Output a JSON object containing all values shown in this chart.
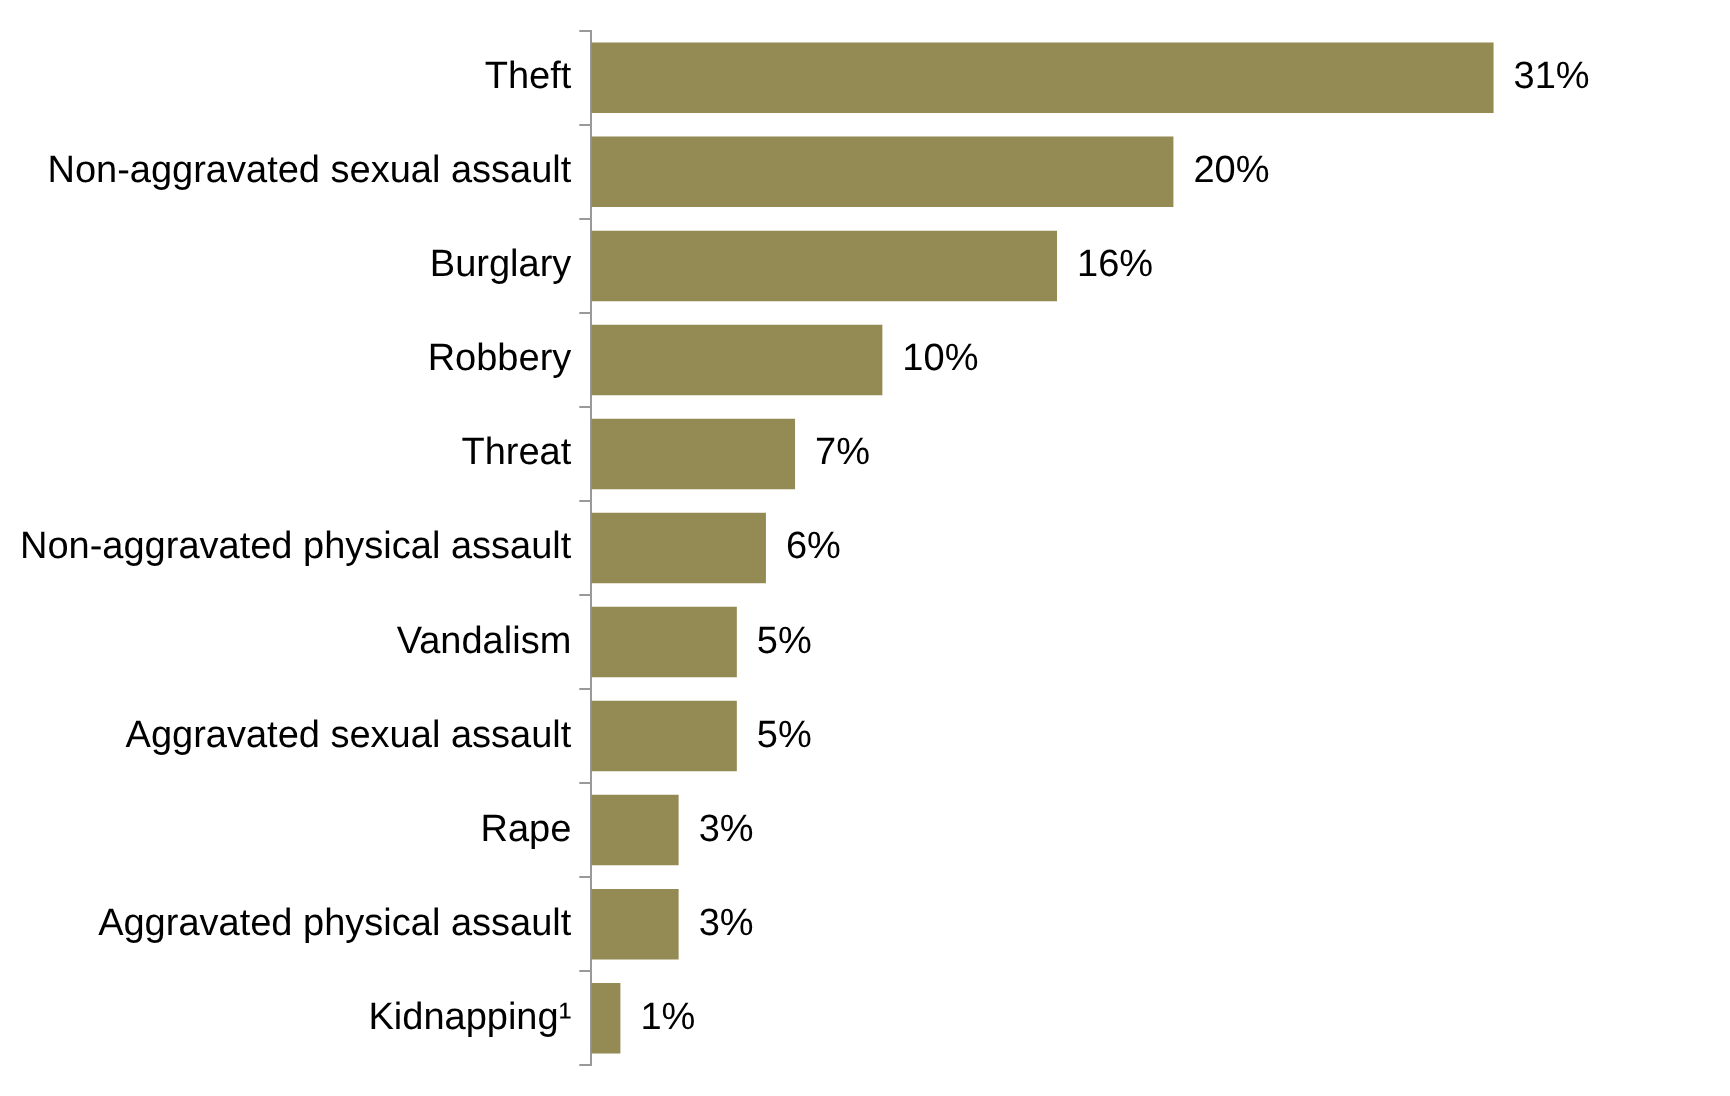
{
  "chart_data": {
    "type": "bar",
    "orientation": "horizontal",
    "categories": [
      "Theft",
      "Non-aggravated sexual assault",
      "Burglary",
      "Robbery",
      "Threat",
      "Non-aggravated physical assault",
      "Vandalism",
      "Aggravated sexual assault",
      "Rape",
      "Aggravated physical assault",
      "Kidnapping¹"
    ],
    "values": [
      31,
      20,
      16,
      10,
      7,
      6,
      5,
      5,
      3,
      3,
      1
    ],
    "value_labels": [
      "31%",
      "20%",
      "16%",
      "10%",
      "7%",
      "6%",
      "5%",
      "5%",
      "3%",
      "3%",
      "1%"
    ],
    "color": "#948a54",
    "grid": false,
    "legend": false
  }
}
